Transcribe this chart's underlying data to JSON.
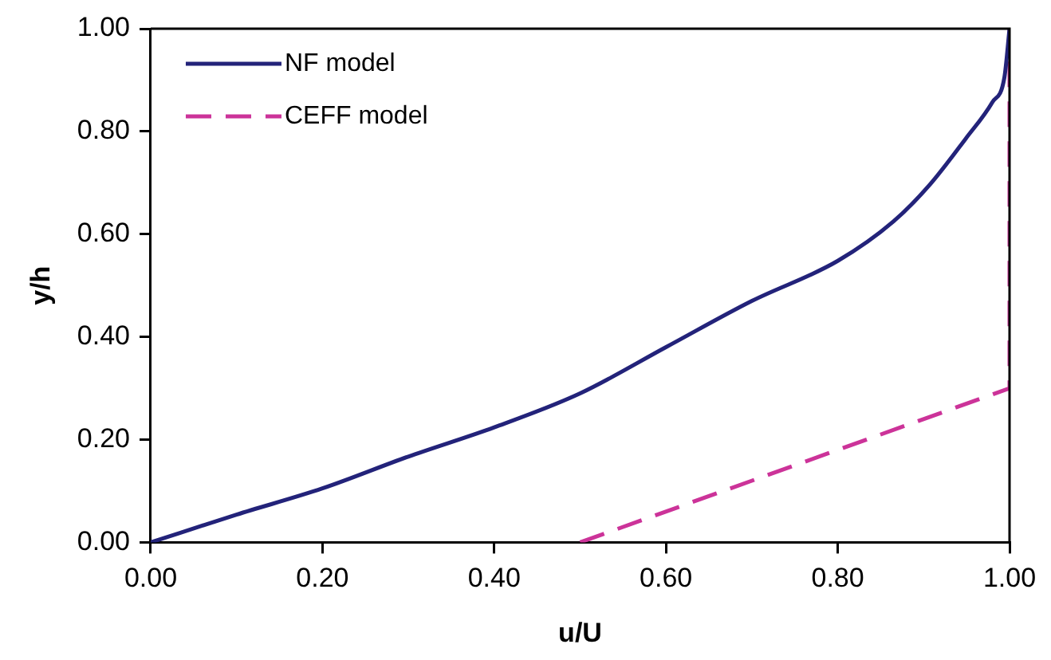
{
  "chart_data": {
    "type": "line",
    "xlabel": "u/U",
    "ylabel": "y/h",
    "xlim": [
      0,
      1
    ],
    "ylim": [
      0,
      1
    ],
    "xticks": [
      {
        "value": 0,
        "label": "0.00"
      },
      {
        "value": 0.2,
        "label": "0.20"
      },
      {
        "value": 0.4,
        "label": "0.40"
      },
      {
        "value": 0.6,
        "label": "0.60"
      },
      {
        "value": 0.8,
        "label": "0.80"
      },
      {
        "value": 1,
        "label": "1.00"
      }
    ],
    "yticks": [
      {
        "value": 0,
        "label": "0.00"
      },
      {
        "value": 0.2,
        "label": "0.20"
      },
      {
        "value": 0.4,
        "label": "0.40"
      },
      {
        "value": 0.6,
        "label": "0.60"
      },
      {
        "value": 0.8,
        "label": "0.80"
      },
      {
        "value": 1,
        "label": "1.00"
      }
    ],
    "grid": false,
    "legend": "top left",
    "marker": "none",
    "series": [
      {
        "name": "NF model",
        "color": "#23237a",
        "line_style": "solid",
        "x": [
          0,
          0.1,
          0.2,
          0.3,
          0.4,
          0.5,
          0.6,
          0.7,
          0.8,
          0.865,
          0.907,
          0.949,
          0.98,
          0.994,
          1
        ],
        "values": [
          0,
          0.054,
          0.105,
          0.167,
          0.224,
          0.29,
          0.38,
          0.47,
          0.548,
          0.625,
          0.696,
          0.786,
          0.857,
          0.905,
          1
        ]
      },
      {
        "name": "CEFF model",
        "color": "#cc3399",
        "line_style": "dashed",
        "x": [
          0.5,
          1,
          1
        ],
        "values": [
          0,
          0.3,
          1
        ]
      }
    ]
  }
}
